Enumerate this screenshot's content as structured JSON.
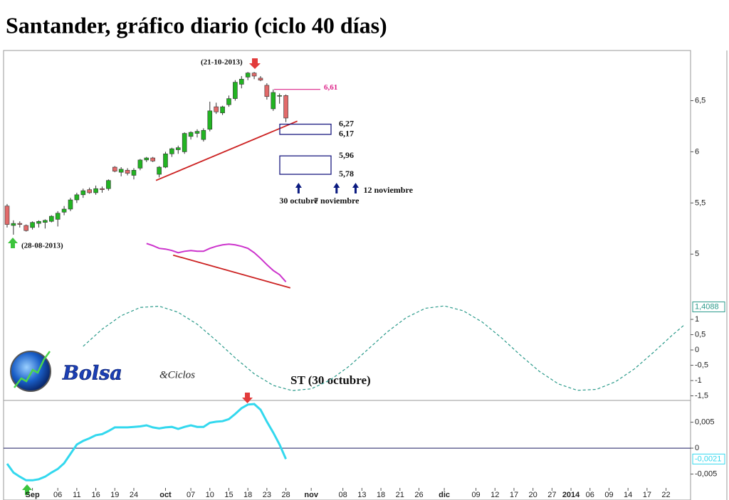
{
  "logo": {
    "brand": "Bolsa",
    "suffix": "&Ciclos"
  },
  "chart_data": [
    {
      "type": "candlestick",
      "title": "Santander, gráfico diario (ciclo 40 días)",
      "x": [
        0,
        1,
        2,
        3,
        4,
        5,
        6,
        7,
        8,
        9,
        10,
        11,
        12,
        13,
        14,
        15,
        16,
        17,
        18,
        19,
        20,
        21,
        22,
        23,
        24,
        25,
        26,
        27,
        28,
        29,
        30,
        31,
        32,
        33,
        34,
        35,
        36,
        37,
        38,
        39,
        40,
        41,
        42,
        43,
        44
      ],
      "open": [
        5.47,
        5.28,
        5.3,
        5.28,
        5.26,
        5.3,
        5.31,
        5.32,
        5.34,
        5.41,
        5.44,
        5.53,
        5.58,
        5.63,
        5.6,
        5.64,
        5.64,
        5.85,
        5.8,
        5.82,
        5.77,
        5.84,
        5.92,
        5.94,
        5.78,
        5.85,
        5.98,
        6.02,
        6.0,
        6.15,
        6.18,
        6.12,
        6.22,
        6.44,
        6.38,
        6.46,
        6.52,
        6.66,
        6.73,
        6.77,
        6.72,
        6.65,
        6.42,
        6.55,
        6.55
      ],
      "high": [
        5.49,
        5.33,
        5.32,
        5.29,
        5.32,
        5.33,
        5.34,
        5.38,
        5.42,
        5.47,
        5.55,
        5.6,
        5.64,
        5.65,
        5.67,
        5.66,
        5.73,
        5.86,
        5.85,
        5.84,
        5.84,
        5.93,
        5.95,
        5.95,
        5.86,
        6.0,
        6.04,
        6.06,
        6.19,
        6.2,
        6.22,
        6.23,
        6.49,
        6.48,
        6.45,
        6.55,
        6.7,
        6.74,
        6.78,
        6.78,
        6.74,
        6.67,
        6.61,
        6.57,
        6.56
      ],
      "low": [
        5.26,
        5.19,
        5.26,
        5.22,
        5.24,
        5.26,
        5.25,
        5.31,
        5.27,
        5.38,
        5.42,
        5.5,
        5.55,
        5.59,
        5.58,
        5.6,
        5.62,
        5.8,
        5.76,
        5.77,
        5.73,
        5.82,
        5.9,
        5.9,
        5.75,
        5.84,
        5.95,
        5.98,
        5.98,
        6.12,
        6.14,
        6.1,
        6.2,
        6.37,
        6.36,
        6.44,
        6.5,
        6.62,
        6.7,
        6.71,
        6.69,
        6.51,
        6.4,
        6.47,
        6.29
      ],
      "close": [
        5.29,
        5.3,
        5.29,
        5.23,
        5.31,
        5.32,
        5.33,
        5.37,
        5.4,
        5.44,
        5.53,
        5.58,
        5.62,
        5.6,
        5.64,
        5.63,
        5.72,
        5.81,
        5.83,
        5.79,
        5.82,
        5.92,
        5.94,
        5.91,
        5.85,
        5.98,
        6.03,
        6.04,
        6.18,
        6.19,
        6.2,
        6.21,
        6.4,
        6.39,
        6.44,
        6.52,
        6.68,
        6.71,
        6.77,
        6.74,
        6.7,
        6.54,
        6.58,
        6.55,
        6.33
      ],
      "up_color": "#22b422",
      "down_color": "#e26a6a",
      "xlim": [
        -0.56,
        107.87
      ],
      "ylim": [
        3.57,
        6.99
      ],
      "yticks": [
        {
          "value": 6.5,
          "label": "6,5"
        },
        6,
        {
          "value": 5.5,
          "label": "5,5"
        },
        5
      ],
      "overlay_series": [
        {
          "color": "#cc33cc",
          "x": [
            22,
            23,
            24,
            25,
            26,
            27,
            28,
            29,
            30,
            31,
            32,
            33,
            34,
            35,
            36,
            37,
            38,
            39,
            40,
            41,
            42,
            43,
            44
          ],
          "values": [
            5.104,
            5.083,
            5.056,
            5.049,
            5.035,
            5.014,
            5.028,
            5.035,
            5.028,
            5.028,
            5.056,
            5.076,
            5.09,
            5.097,
            5.09,
            5.076,
            5.056,
            5.014,
            4.958,
            4.896,
            4.84,
            4.799,
            4.729
          ]
        }
      ],
      "trendlines": [
        {
          "color": "#cc2222",
          "x": [
            23.5,
            45.8
          ],
          "values": [
            5.72,
            6.3
          ]
        },
        {
          "color": "#cc2222",
          "x": [
            26.2,
            44.7
          ],
          "values": [
            4.99,
            4.67
          ]
        }
      ],
      "level": {
        "value": 6.61,
        "label": "6,61",
        "color": "#dd2288"
      },
      "zones": [
        {
          "top": {
            "value": 6.27,
            "label": "6,27"
          },
          "bottom": {
            "value": 6.17,
            "label": "6,17"
          }
        },
        {
          "top": {
            "value": 5.96,
            "label": "5,96"
          },
          "bottom": {
            "value": 5.78,
            "label": "5,78"
          }
        }
      ],
      "date_markers": [
        {
          "x": 46,
          "label": "30 octubre"
        },
        {
          "x": 52,
          "label": "7 noviembre"
        },
        {
          "x": 55,
          "label": "12 noviembre"
        }
      ],
      "annotations": {
        "peak_date": "(21-10-2013)",
        "low_date": "(28-08-2013)"
      }
    },
    {
      "type": "line",
      "label": "ST (30 octubre)",
      "color": "#2a9a8a",
      "dashed": true,
      "x": [
        12,
        15,
        18,
        21,
        24,
        27,
        30,
        33,
        36,
        39,
        42,
        45,
        48,
        51,
        54,
        57,
        60,
        63,
        66,
        69,
        72,
        75,
        78,
        81,
        84,
        87,
        90,
        93,
        96,
        99,
        102,
        105,
        107
      ],
      "values": [
        0.12,
        0.68,
        1.12,
        1.39,
        1.43,
        1.23,
        0.84,
        0.31,
        -0.26,
        -0.78,
        -1.16,
        -1.33,
        -1.27,
        -0.98,
        -0.53,
        0.03,
        0.59,
        1.06,
        1.36,
        1.44,
        1.28,
        0.91,
        0.4,
        -0.17,
        -0.7,
        -1.11,
        -1.32,
        -1.29,
        -1.04,
        -0.62,
        -0.08,
        0.49,
        0.84
      ],
      "xlim": [
        -0.56,
        107.87
      ],
      "ylim": [
        -1.65,
        9.79
      ],
      "yticks": [
        1,
        {
          "value": 0.5,
          "label": "0,5"
        },
        0,
        {
          "value": -0.5,
          "label": "-0,5"
        },
        -1,
        {
          "value": -1.5,
          "label": "-1,5"
        }
      ],
      "current": {
        "value": 1.4088,
        "label": "1,4088"
      }
    },
    {
      "type": "line",
      "color": "#33d8ee",
      "dashed": false,
      "zero_line": true,
      "x": [
        0,
        1,
        2,
        3,
        4,
        5,
        6,
        7,
        8,
        9,
        10,
        11,
        12,
        13,
        14,
        15,
        16,
        17,
        18,
        19,
        20,
        21,
        22,
        23,
        24,
        25,
        26,
        27,
        28,
        29,
        30,
        31,
        32,
        33,
        34,
        35,
        36,
        37,
        38,
        39,
        40,
        41,
        42,
        43,
        44
      ],
      "values": [
        -0.003,
        -0.0047,
        -0.0055,
        -0.0062,
        -0.0062,
        -0.006,
        -0.0055,
        -0.0047,
        -0.004,
        -0.0029,
        -0.0011,
        0.0007,
        0.0014,
        0.0019,
        0.0025,
        0.0027,
        0.0033,
        0.004,
        0.004,
        0.004,
        0.0041,
        0.0042,
        0.0044,
        0.004,
        0.0038,
        0.004,
        0.0041,
        0.0037,
        0.0041,
        0.0044,
        0.0041,
        0.0041,
        0.0049,
        0.0051,
        0.0052,
        0.0056,
        0.0066,
        0.0077,
        0.0084,
        0.0085,
        0.0074,
        0.0051,
        0.003,
        0.0007,
        -0.0021
      ],
      "xlim": [
        -0.56,
        107.87
      ],
      "ylim": [
        -0.01,
        0.0092
      ],
      "yticks": [
        {
          "value": 0.005,
          "label": "0,005"
        },
        0,
        {
          "value": -0.005,
          "label": "-0,005"
        }
      ],
      "current": {
        "value": -0.0021,
        "label": "-0,0021"
      },
      "xticks": [
        {
          "value": 4,
          "label": "Sep"
        },
        {
          "value": 8,
          "label": "06"
        },
        {
          "value": 11,
          "label": "11"
        },
        {
          "value": 14,
          "label": "16"
        },
        {
          "value": 17,
          "label": "19"
        },
        {
          "value": 20,
          "label": "24"
        },
        {
          "value": 25,
          "label": "oct"
        },
        {
          "value": 29,
          "label": "07"
        },
        {
          "value": 32,
          "label": "10"
        },
        {
          "value": 35,
          "label": "15"
        },
        {
          "value": 38,
          "label": "18"
        },
        {
          "value": 41,
          "label": "23"
        },
        {
          "value": 44,
          "label": "28"
        },
        {
          "value": 48,
          "label": "nov"
        },
        {
          "value": 53,
          "label": "08"
        },
        {
          "value": 56,
          "label": "13"
        },
        {
          "value": 59,
          "label": "18"
        },
        {
          "value": 62,
          "label": "21"
        },
        {
          "value": 65,
          "label": "26"
        },
        {
          "value": 69,
          "label": "dic"
        },
        {
          "value": 74,
          "label": "09"
        },
        {
          "value": 77,
          "label": "12"
        },
        {
          "value": 80,
          "label": "17"
        },
        {
          "value": 83,
          "label": "20"
        },
        {
          "value": 86,
          "label": "27"
        },
        {
          "value": 89,
          "label": "2014"
        },
        {
          "value": 92,
          "label": "06"
        },
        {
          "value": 95,
          "label": "09"
        },
        {
          "value": 98,
          "label": "14"
        },
        {
          "value": 101,
          "label": "17"
        },
        {
          "value": 104,
          "label": "22"
        }
      ]
    }
  ]
}
